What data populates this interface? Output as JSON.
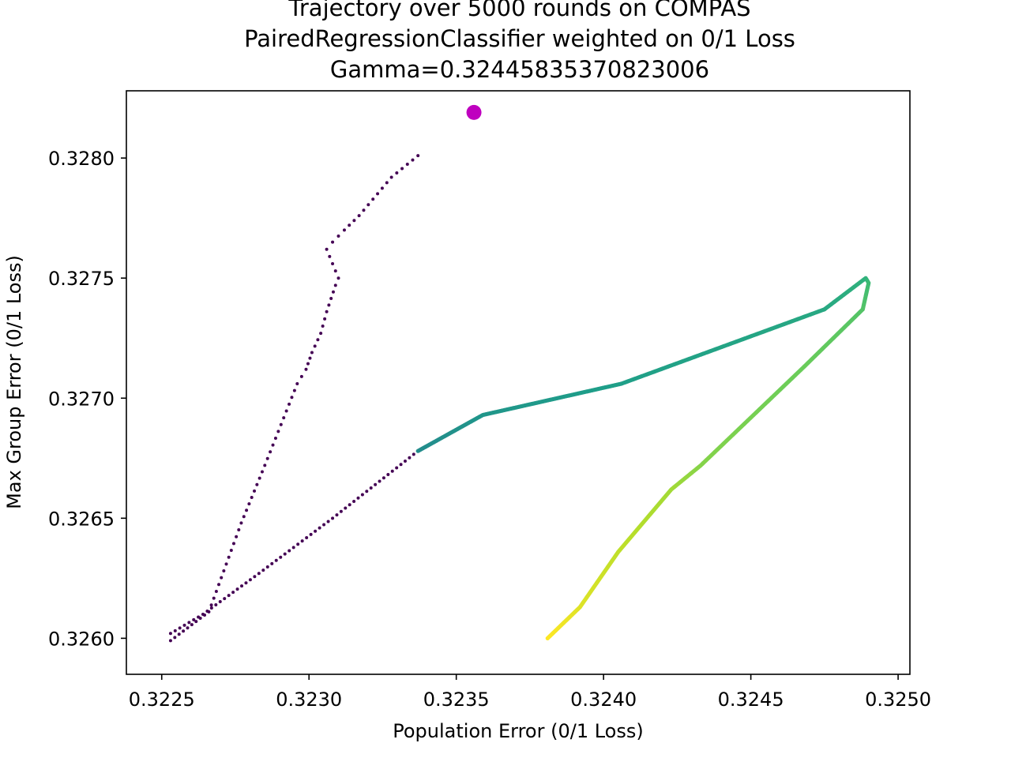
{
  "chart_data": {
    "type": "scatter",
    "title_lines": [
      "Trajectory over 5000 rounds on COMPAS",
      "PairedRegressionClassifier weighted on 0/1 Loss",
      "Gamma=0.32445835370823006"
    ],
    "xlabel": "Population Error (0/1 Loss)",
    "ylabel": "Max Group Error (0/1 Loss)",
    "xlim": [
      0.32238,
      0.32504
    ],
    "ylim": [
      0.32585,
      0.32828
    ],
    "x_ticks": [
      "0.3225",
      "0.3230",
      "0.3235",
      "0.3240",
      "0.3245",
      "0.3250"
    ],
    "x_tick_values": [
      0.3225,
      0.323,
      0.3235,
      0.324,
      0.3245,
      0.325
    ],
    "y_ticks": [
      "0.3260",
      "0.3265",
      "0.3270",
      "0.3275",
      "0.3280"
    ],
    "y_tick_values": [
      0.326,
      0.3265,
      0.327,
      0.3275,
      0.328
    ],
    "grid": false,
    "colormap": "viridis",
    "highlight_point": {
      "x": 0.32356,
      "y": 0.32819,
      "color": "#bf00bf"
    },
    "trajectory": [
      [
        0.32337,
        0.32801
      ],
      [
        0.32328,
        0.32792
      ],
      [
        0.32317,
        0.32776
      ],
      [
        0.32312,
        0.3277
      ],
      [
        0.32308,
        0.32765
      ],
      [
        0.32306,
        0.32762
      ],
      [
        0.3231,
        0.3275
      ],
      [
        0.32309,
        0.32747
      ],
      [
        0.32306,
        0.32736
      ],
      [
        0.32304,
        0.32727
      ],
      [
        0.32301,
        0.32719
      ],
      [
        0.32299,
        0.32712
      ],
      [
        0.32296,
        0.32706
      ],
      [
        0.32285,
        0.32672
      ],
      [
        0.32277,
        0.32648
      ],
      [
        0.32266,
        0.32611
      ],
      [
        0.32253,
        0.32599
      ],
      [
        0.32253,
        0.32602
      ],
      [
        0.32264,
        0.3261
      ],
      [
        0.32283,
        0.32627
      ],
      [
        0.32308,
        0.3265
      ],
      [
        0.32337,
        0.32678
      ],
      [
        0.32359,
        0.32693
      ],
      [
        0.32406,
        0.32706
      ],
      [
        0.32475,
        0.32737
      ],
      [
        0.32489,
        0.3275
      ],
      [
        0.3249,
        0.32748
      ],
      [
        0.32488,
        0.32737
      ],
      [
        0.32468,
        0.32713
      ],
      [
        0.32433,
        0.32672
      ],
      [
        0.32423,
        0.32662
      ],
      [
        0.32405,
        0.32636
      ],
      [
        0.32392,
        0.32613
      ],
      [
        0.32381,
        0.326
      ]
    ]
  }
}
